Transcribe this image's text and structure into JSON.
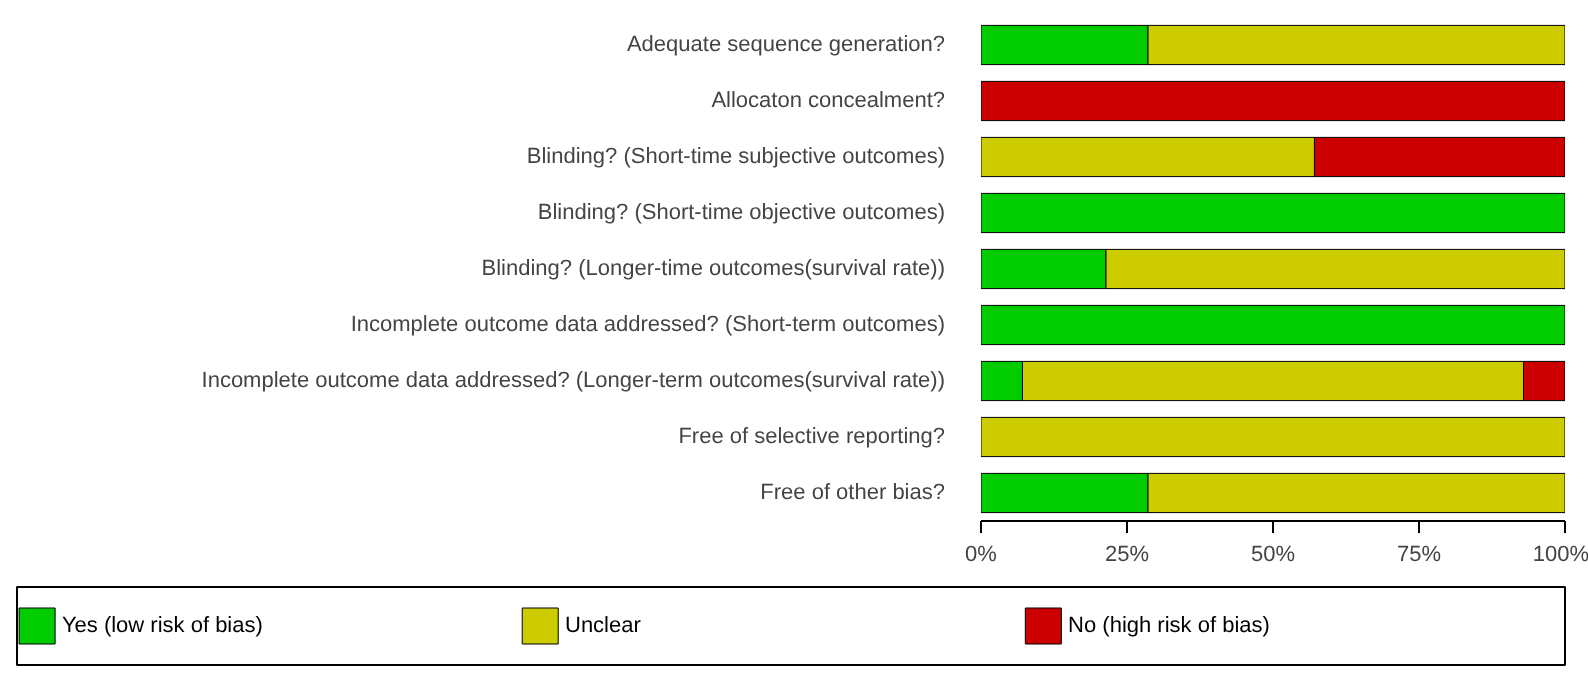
{
  "chart_data": {
    "type": "bar",
    "orientation": "horizontal",
    "stacked": true,
    "categories": [
      "Adequate sequence generation?",
      "Allocaton concealment?",
      "Blinding? (Short-time subjective outcomes)",
      "Blinding? (Short-time objective outcomes)",
      "Blinding? (Longer-time outcomes(survival rate))",
      "Incomplete outcome data addressed? (Short-term outcomes)",
      "Incomplete outcome data addressed? (Longer-term outcomes(survival rate))",
      "Free of selective reporting?",
      "Free of other bias?"
    ],
    "series": [
      {
        "name": "Yes (low risk of bias)",
        "color": "#00cc00",
        "values": [
          28.6,
          0,
          0,
          100,
          21.4,
          100,
          7.1,
          0,
          28.6
        ]
      },
      {
        "name": "Unclear",
        "color": "#cccc00",
        "values": [
          71.4,
          0,
          57.1,
          0,
          78.6,
          0,
          85.8,
          100,
          71.4
        ]
      },
      {
        "name": "No (high risk of bias)",
        "color": "#cc0000",
        "values": [
          0,
          100,
          42.9,
          0,
          0,
          0,
          7.1,
          0,
          0
        ]
      }
    ],
    "xlim": [
      0,
      100
    ],
    "xticks": [
      {
        "value": 0,
        "label": "0%"
      },
      {
        "value": 25,
        "label": "25%"
      },
      {
        "value": 50,
        "label": "50%"
      },
      {
        "value": 75,
        "label": "75%"
      },
      {
        "value": 100,
        "label": "100%"
      }
    ],
    "grid": false,
    "legend": "bottom"
  }
}
